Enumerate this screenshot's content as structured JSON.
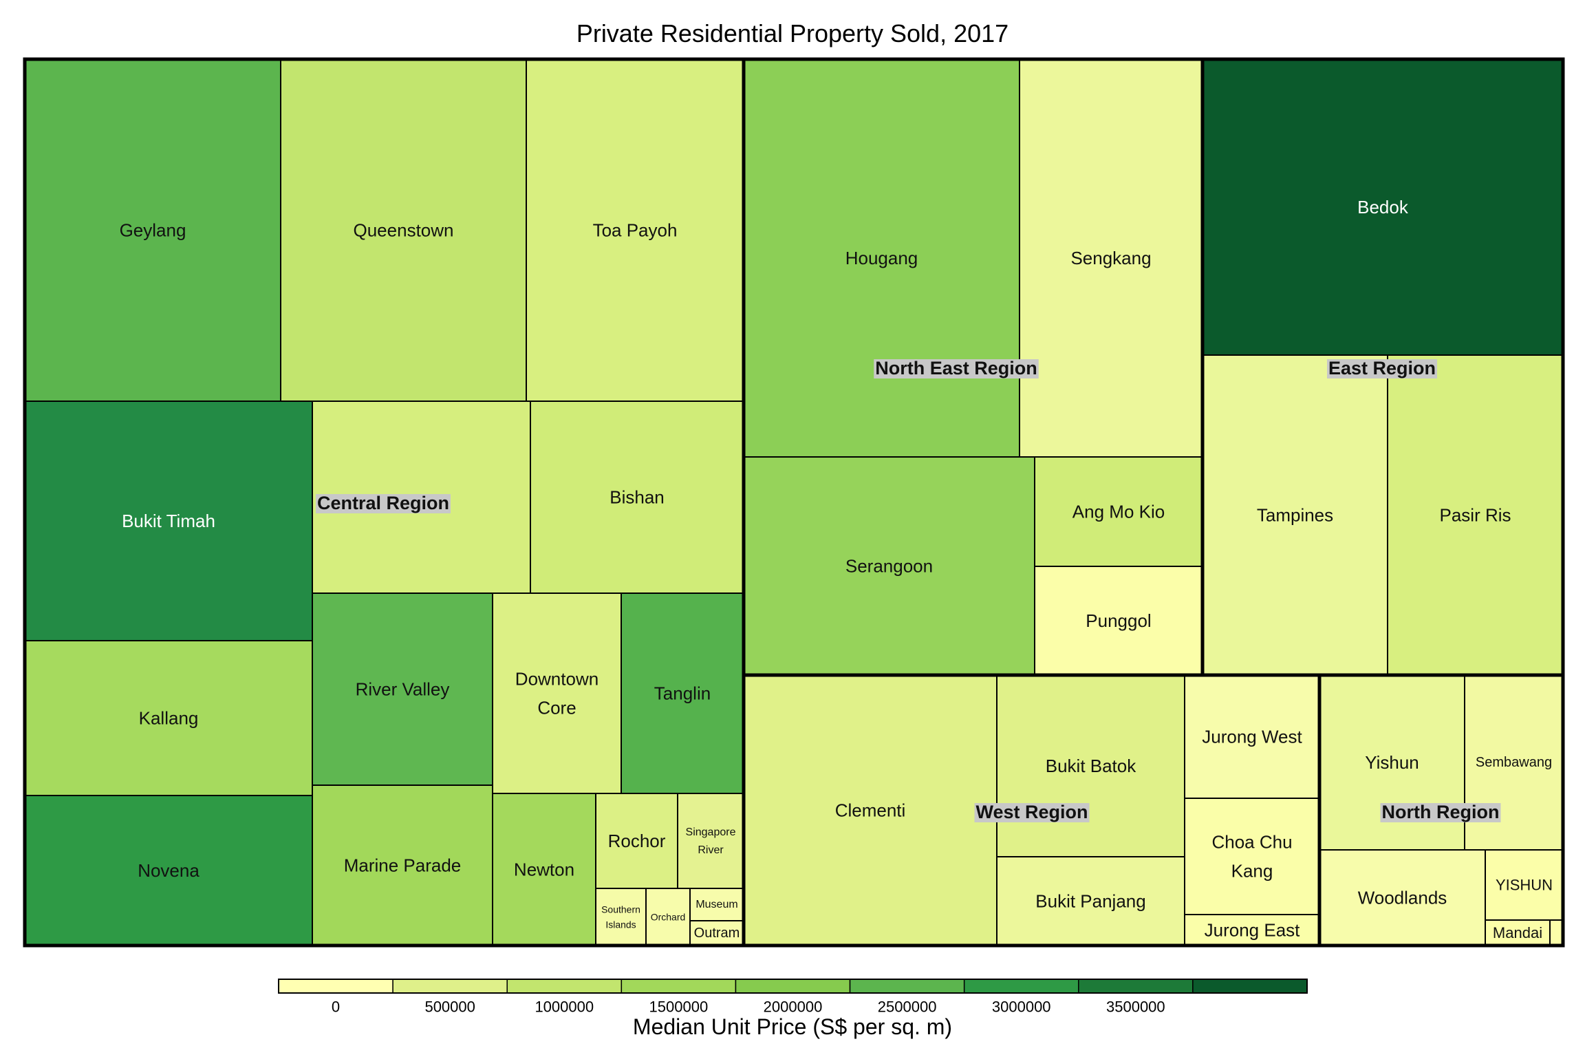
{
  "chart_data": {
    "type": "treemap",
    "title": "Private Residential Property Sold, 2017",
    "colorbar": {
      "title": "Median Unit Price (S$ per sq. m)",
      "ticks": [
        "0",
        "500000",
        "1000000",
        "1500000",
        "2000000",
        "2500000",
        "3000000",
        "3500000"
      ],
      "colors": [
        "#ffffb2",
        "#dff08a",
        "#c2e56e",
        "#a2d85a",
        "#86cb4e",
        "#5cb54e",
        "#2e9a45",
        "#1d7a38",
        "#0b5a2c"
      ]
    },
    "regions": [
      {
        "name": "Central Region",
        "areas": [
          {
            "name": "Geylang",
            "fill": "#5cb54e"
          },
          {
            "name": "Queenstown",
            "fill": "#c2e56e"
          },
          {
            "name": "Toa Payoh",
            "fill": "#d8ef80"
          },
          {
            "name": "Bukit Timah",
            "fill": "#238b45"
          },
          {
            "name": "",
            "fill": "#d6ee7e"
          },
          {
            "name": "Bishan",
            "fill": "#d0ec78"
          },
          {
            "name": "Kallang",
            "fill": "#a6da5e"
          },
          {
            "name": "River Valley",
            "fill": "#5fb751"
          },
          {
            "name": "Downtown Core",
            "fill": "#dcf085"
          },
          {
            "name": "Tanglin",
            "fill": "#55b24d"
          },
          {
            "name": "Novena",
            "fill": "#2e9a45"
          },
          {
            "name": "Marine Parade",
            "fill": "#a2d85a"
          },
          {
            "name": "Newton",
            "fill": "#a4d95c"
          },
          {
            "name": "Rochor",
            "fill": "#dcf085"
          },
          {
            "name": "Singapore River",
            "fill": "#e4f291"
          },
          {
            "name": "Southern Islands",
            "fill": "#f5fba8"
          },
          {
            "name": "Orchard",
            "fill": "#f7fcab"
          },
          {
            "name": "Museum",
            "fill": "#f7fcab"
          },
          {
            "name": "Outram",
            "fill": "#f7fcab"
          }
        ]
      },
      {
        "name": "North East Region",
        "areas": [
          {
            "name": "Hougang",
            "fill": "#8ccf56"
          },
          {
            "name": "Sengkang",
            "fill": "#ecf79b"
          },
          {
            "name": "Serangoon",
            "fill": "#96d35a"
          },
          {
            "name": "Ang Mo Kio",
            "fill": "#d0ec78"
          },
          {
            "name": "Punggol",
            "fill": "#fbfea9"
          }
        ]
      },
      {
        "name": "East Region",
        "areas": [
          {
            "name": "Bedok",
            "fill": "#0b5a2c"
          },
          {
            "name": "Tampines",
            "fill": "#eaf79a"
          },
          {
            "name": "Pasir Ris",
            "fill": "#d8ef80"
          }
        ]
      },
      {
        "name": "West Region",
        "areas": [
          {
            "name": "Clementi",
            "fill": "#e0f189"
          },
          {
            "name": "Bukit Batok",
            "fill": "#e0f189"
          },
          {
            "name": "Bukit Panjang",
            "fill": "#ecf79b"
          },
          {
            "name": "Jurong West",
            "fill": "#f7fcab"
          },
          {
            "name": "Choa Chu Kang",
            "fill": "#fafea9"
          },
          {
            "name": "Jurong East",
            "fill": "#fafea9"
          }
        ]
      },
      {
        "name": "North Region",
        "areas": [
          {
            "name": "Yishun",
            "fill": "#eaf79a"
          },
          {
            "name": "Sembawang",
            "fill": "#f2f9a2"
          },
          {
            "name": "Woodlands",
            "fill": "#f7fcab"
          },
          {
            "name": "YISHUN",
            "fill": "#fbfea9"
          },
          {
            "name": "Mandai",
            "fill": "#fbfea9"
          },
          {
            "name": "",
            "fill": "#fbfea9"
          }
        ]
      }
    ]
  }
}
